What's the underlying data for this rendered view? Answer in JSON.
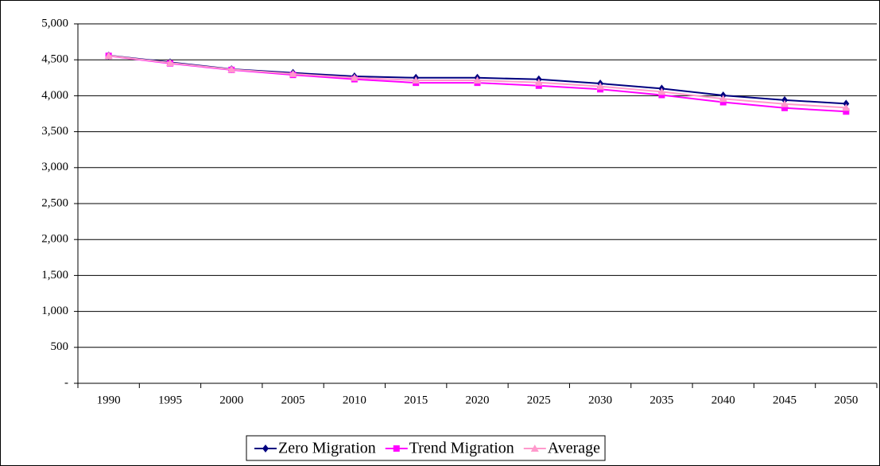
{
  "chart_data": {
    "type": "line",
    "categories": [
      "1990",
      "1995",
      "2000",
      "2005",
      "2010",
      "2015",
      "2020",
      "2025",
      "2030",
      "2035",
      "2040",
      "2045",
      "2050"
    ],
    "series": [
      {
        "name": "Zero Migration",
        "color": "#000080",
        "marker": "diamond",
        "values": [
          4560,
          4465,
          4370,
          4318,
          4270,
          4250,
          4250,
          4228,
          4170,
          4100,
          4005,
          3940,
          3890
        ]
      },
      {
        "name": "Trend Migration",
        "color": "#ff00ff",
        "marker": "square",
        "values": [
          4555,
          4450,
          4360,
          4290,
          4230,
          4180,
          4180,
          4140,
          4090,
          4010,
          3910,
          3830,
          3780
        ]
      },
      {
        "name": "Average",
        "color": "#ff99cc",
        "marker": "triangle",
        "values": [
          4558,
          4457,
          4365,
          4304,
          4250,
          4215,
          4215,
          4184,
          4130,
          4055,
          3958,
          3885,
          3835
        ]
      }
    ],
    "ylim": [
      0,
      5000
    ],
    "yticks": [
      {
        "value": 0,
        "label": "-"
      },
      500,
      {
        "value": 1000,
        "label": "1,000"
      },
      {
        "value": 1500,
        "label": "1,500"
      },
      {
        "value": 2000,
        "label": "2,000"
      },
      {
        "value": 2500,
        "label": "2,500"
      },
      {
        "value": 3000,
        "label": "3,000"
      },
      {
        "value": 3500,
        "label": "3,500"
      },
      {
        "value": 4000,
        "label": "4,000"
      },
      {
        "value": 4500,
        "label": "4,500"
      },
      {
        "value": 5000,
        "label": "5,000"
      }
    ],
    "grid": true,
    "legend": "bottom"
  }
}
